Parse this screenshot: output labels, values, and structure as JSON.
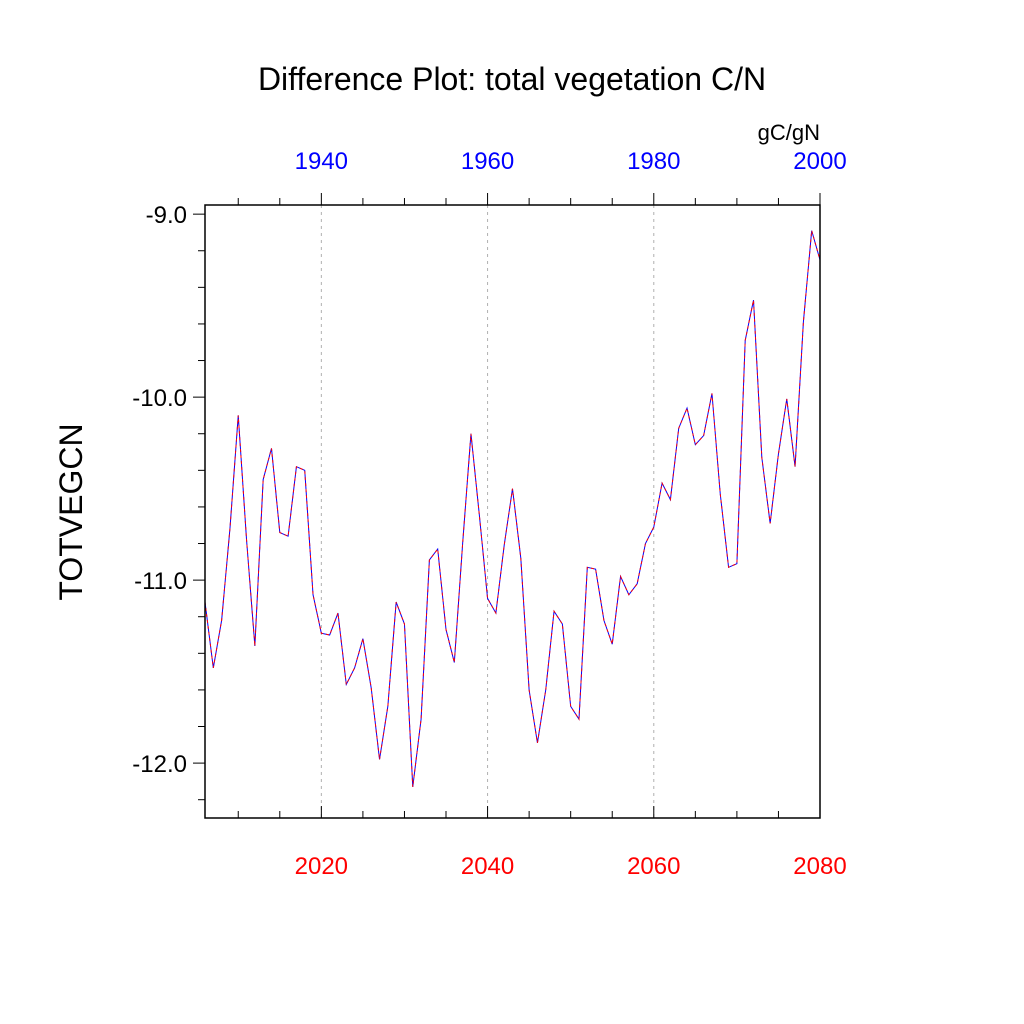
{
  "chart_data": {
    "type": "line",
    "title": "Difference Plot: total vegetation C/N",
    "ylabel": "TOTVEGCN",
    "units": "gC/gN",
    "xlim": [
      2006,
      2080
    ],
    "ylim": [
      -12.3,
      -8.95
    ],
    "grid": "vertical dashed",
    "bottom_axis": {
      "color": "#ff0000",
      "ticks": [
        2020,
        2040,
        2060,
        2080
      ],
      "tick_labels": [
        "2020",
        "2040",
        "2060",
        "2080"
      ]
    },
    "top_axis": {
      "color": "#0000ff",
      "ticks": [
        1940,
        1960,
        1980,
        2000
      ],
      "tick_labels": [
        "1940",
        "1960",
        "1980",
        "2000"
      ],
      "offset_years": 80
    },
    "y_ticks": [
      -12,
      -11,
      -10,
      -9
    ],
    "y_tick_labels": [
      "-12.0",
      "-11.0",
      "-10.0",
      "-9.0"
    ],
    "series": [
      {
        "name": "difference",
        "colors": [
          "#0000ff",
          "#ff0000"
        ],
        "x": [
          2006,
          2007,
          2008,
          2009,
          2010,
          2011,
          2012,
          2013,
          2014,
          2015,
          2016,
          2017,
          2018,
          2019,
          2020,
          2021,
          2022,
          2023,
          2024,
          2025,
          2026,
          2027,
          2028,
          2029,
          2030,
          2031,
          2032,
          2033,
          2034,
          2035,
          2036,
          2037,
          2038,
          2039,
          2040,
          2041,
          2042,
          2043,
          2044,
          2045,
          2046,
          2047,
          2048,
          2049,
          2050,
          2051,
          2052,
          2053,
          2054,
          2055,
          2056,
          2057,
          2058,
          2059,
          2060,
          2061,
          2062,
          2063,
          2064,
          2065,
          2066,
          2067,
          2068,
          2069,
          2070,
          2071,
          2072,
          2073,
          2074,
          2075,
          2076,
          2077,
          2078,
          2079,
          2080
        ],
        "values": [
          -11.12,
          -11.48,
          -11.22,
          -10.72,
          -10.1,
          -10.78,
          -11.36,
          -10.45,
          -10.28,
          -10.74,
          -10.76,
          -10.38,
          -10.4,
          -11.08,
          -11.29,
          -11.3,
          -11.18,
          -11.57,
          -11.48,
          -11.32,
          -11.59,
          -11.98,
          -11.69,
          -11.12,
          -11.24,
          -12.13,
          -11.76,
          -10.89,
          -10.83,
          -11.27,
          -11.45,
          -10.8,
          -10.2,
          -10.64,
          -11.1,
          -11.18,
          -10.81,
          -10.5,
          -10.88,
          -11.6,
          -11.89,
          -11.6,
          -11.17,
          -11.24,
          -11.69,
          -11.76,
          -10.93,
          -10.94,
          -11.22,
          -11.35,
          -10.98,
          -11.08,
          -11.02,
          -10.8,
          -10.71,
          -10.47,
          -10.56,
          -10.17,
          -10.06,
          -10.26,
          -10.21,
          -9.98,
          -10.53,
          -10.93,
          -10.91,
          -9.69,
          -9.47,
          -10.33,
          -10.69,
          -10.31,
          -10.01,
          -10.38,
          -9.59,
          -9.09,
          -9.25
        ]
      }
    ]
  }
}
